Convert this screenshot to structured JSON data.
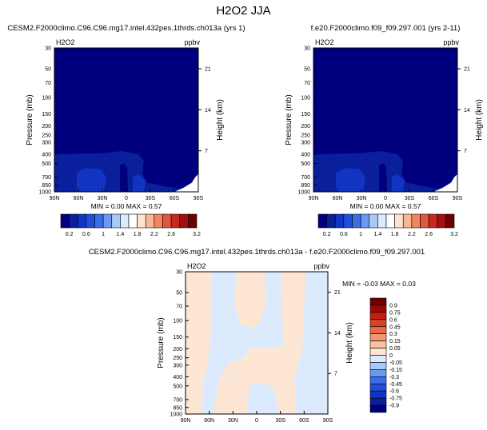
{
  "page_title": "H2O2 JJA",
  "palettes": {
    "abs": [
      "#00007f",
      "#0a1f9c",
      "#1234c2",
      "#1f50dd",
      "#3a6ee8",
      "#6d97f2",
      "#a8c8f8",
      "#dbeafd",
      "#ffffff",
      "#fde2cf",
      "#f9b693",
      "#f18463",
      "#e2573e",
      "#c62a1e",
      "#a30f10",
      "#6e0000"
    ],
    "diff": [
      "#00007f",
      "#0a1f9c",
      "#1234c2",
      "#1f50dd",
      "#3a6ee8",
      "#6d97f2",
      "#a8c8f8",
      "#dbeafd",
      "#fde6d3",
      "#f9c0a0",
      "#f39670",
      "#ea6a48",
      "#da4129",
      "#c2200f",
      "#9f0707",
      "#6e0000"
    ]
  },
  "chart_data": [
    {
      "type": "heatmap",
      "title": "CESM2.F2000climo.C96.C96.mg17.intel.432pes.1thrds.ch013a (yrs 1)",
      "variable_label": "H2O2",
      "units_label": "ppbv",
      "ylabel": "Pressure (mb)",
      "ylabel_right": "Height (km)",
      "x_ticks": [
        "90N",
        "60N",
        "30N",
        "0",
        "30S",
        "60S",
        "90S"
      ],
      "y_ticks": [
        "30",
        "50",
        "70",
        "100",
        "150",
        "200",
        "250",
        "300",
        "400",
        "500",
        "700",
        "850",
        "1000"
      ],
      "y_ticks_right": [
        "21",
        "14",
        "7"
      ],
      "min_max": "MIN =  0.00  MAX =  0.57",
      "colorbar_labels": [
        "0.2",
        "0.6",
        "1",
        "1.4",
        "1.8",
        "2.2",
        "2.6",
        "3.2"
      ],
      "ylim": [
        1000,
        30
      ],
      "xlim": [
        90,
        -90
      ],
      "colorbar_levels": [
        0.2,
        0.4,
        0.6,
        0.8,
        1.0,
        1.2,
        1.4,
        1.6,
        1.8,
        2.0,
        2.2,
        2.4,
        2.6,
        2.8,
        3.0,
        3.2
      ],
      "colorbar_orientation": "horizontal"
    },
    {
      "type": "heatmap",
      "title": "f.e20.F2000climo.f09_f09.297.001 (yrs 2-11)",
      "variable_label": "H2O2",
      "units_label": "ppbv",
      "ylabel": "Pressure (mb)",
      "ylabel_right": "Height (km)",
      "x_ticks": [
        "90N",
        "60N",
        "30N",
        "0",
        "30S",
        "60S",
        "90S"
      ],
      "y_ticks": [
        "30",
        "50",
        "70",
        "100",
        "150",
        "200",
        "250",
        "300",
        "400",
        "500",
        "700",
        "850",
        "1000"
      ],
      "y_ticks_right": [
        "21",
        "14",
        "7"
      ],
      "min_max": "MIN =  0.00  MAX =  0.57",
      "colorbar_labels": [
        "0.2",
        "0.6",
        "1",
        "1.4",
        "1.8",
        "2.2",
        "2.6",
        "3.2"
      ],
      "ylim": [
        1000,
        30
      ],
      "xlim": [
        90,
        -90
      ],
      "colorbar_levels": [
        0.2,
        0.4,
        0.6,
        0.8,
        1.0,
        1.2,
        1.4,
        1.6,
        1.8,
        2.0,
        2.2,
        2.4,
        2.6,
        2.8,
        3.0,
        3.2
      ],
      "colorbar_orientation": "horizontal"
    },
    {
      "type": "heatmap",
      "title": "CESM2.F2000climo.C96.C96.mg17.intel.432pes.1thrds.ch013a - f.e20.F2000climo.f09_f09.297.001",
      "variable_label": "H2O2",
      "units_label": "ppbv",
      "ylabel": "Pressure (mb)",
      "ylabel_right": "Height (km)",
      "x_ticks": [
        "90N",
        "60N",
        "30N",
        "0",
        "30S",
        "60S",
        "90S"
      ],
      "y_ticks": [
        "30",
        "50",
        "70",
        "100",
        "150",
        "200",
        "250",
        "300",
        "400",
        "500",
        "700",
        "850",
        "1000"
      ],
      "y_ticks_right": [
        "21",
        "14",
        "7"
      ],
      "min_max": "MIN = -0.03  MAX =  0.03",
      "colorbar_labels": [
        "0.9",
        "0.75",
        "0.6",
        "0.45",
        "0.3",
        "0.15",
        "0.05",
        "0",
        "-0.05",
        "-0.15",
        "-0.3",
        "-0.45",
        "-0.6",
        "-0.75",
        "-0.9"
      ],
      "ylim": [
        1000,
        30
      ],
      "xlim": [
        90,
        -90
      ],
      "colorbar_levels": [
        0.9,
        0.75,
        0.6,
        0.45,
        0.3,
        0.15,
        0.05,
        0,
        -0.05,
        -0.15,
        -0.3,
        -0.45,
        -0.6,
        -0.75,
        -0.9
      ],
      "colorbar_orientation": "vertical"
    }
  ]
}
